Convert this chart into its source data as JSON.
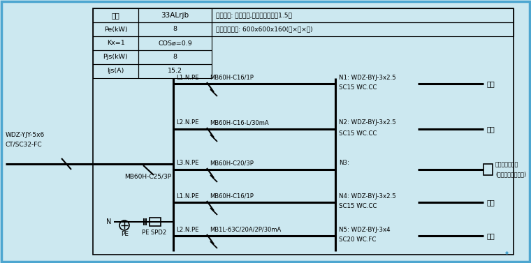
{
  "bg_color": "#cce8f0",
  "border_color": "#4da6d0",
  "box_color": "#000000",
  "text_color": "#000000",
  "line_color": "#000000",
  "title_row_label": "编号",
  "title_row_value": "33ALrjb",
  "install_text1": "安装方式: 挂墙安装,柜体底辺距地面1.5米",
  "install_text2": "柜体参考尺寸: 600x600x160(宽×高×深)",
  "table_rows": [
    [
      "Pe(kW)",
      "8"
    ],
    [
      "Kx=1",
      "COSø=0.9"
    ],
    [
      "Pjs(kW)",
      "8"
    ],
    [
      "Ijs(A)",
      "15.2"
    ]
  ],
  "left_cable_line1": "WDZ-YJY-5x6",
  "left_cable_line2": "CT/SC32-FC",
  "main_breaker": "MB60H-C25/3P",
  "circuits": [
    {
      "line_label": "L1.N.PE",
      "breaker": "MB60H-C16/1P",
      "outlet_label": "N1: WDZ-BYJ-3x2.5",
      "outlet_sub": "SC15 WC.CC",
      "end_label": "照明",
      "is_box": false
    },
    {
      "line_label": "L2.N.PE",
      "breaker": "MB60H-C16-L/30mA",
      "outlet_label": "N2: WDZ-BYJ-3x2.5",
      "outlet_sub": "SC15 WC.CC",
      "end_label": "插座",
      "is_box": false
    },
    {
      "line_label": "L3.N.PE",
      "breaker": "MB60H-C20/3P",
      "outlet_label": "N3:",
      "outlet_sub": "",
      "end_label": "人防属务控制柜",
      "end_label2": "(由人防门拆了便供)",
      "is_box": true
    },
    {
      "line_label": "L1.N.PE",
      "breaker": "MB60H-C16/1P",
      "outlet_label": "N4: WDZ-BYJ-3x2.5",
      "outlet_sub": "SC15 WC.CC",
      "end_label": "备用",
      "is_box": false
    },
    {
      "line_label": "L2.N.PE",
      "breaker": "MB1L-63C/20A/2P/30mA",
      "outlet_label": "N5: WDZ-BYJ-3x4",
      "outlet_sub": "SC20 WC.FC",
      "end_label": "备用",
      "is_box": false
    }
  ],
  "n_label": "N",
  "pe_label": "PE",
  "spd_label": "PE SPD2"
}
